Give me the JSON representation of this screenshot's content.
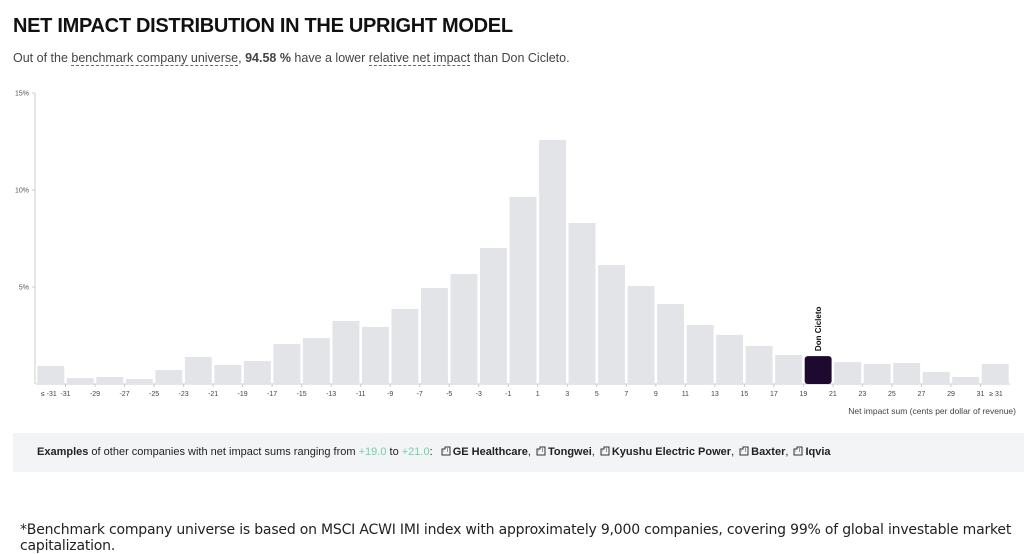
{
  "title": "NET IMPACT DISTRIBUTION IN THE UPRIGHT MODEL",
  "subtitle": [
    "Out of the ",
    "benchmark company universe",
    ", ",
    "94.58 %",
    " have a lower ",
    "relative net impact",
    " than Don Cicleto."
  ],
  "chart_data": {
    "type": "bar",
    "values": [
      0.93,
      0.3,
      0.36,
      0.26,
      0.72,
      1.39,
      0.98,
      1.19,
      2.06,
      2.37,
      3.25,
      2.94,
      3.87,
      4.95,
      5.67,
      7.01,
      9.64,
      12.58,
      8.3,
      6.13,
      5.05,
      4.12,
      3.04,
      2.53,
      1.96,
      1.49,
      1.44,
      1.13,
      1.03,
      1.08,
      0.62,
      0.36,
      1.03
    ],
    "color": "#e3e4e7",
    "highlight": {
      "name": "Don Cicleto",
      "bar": 26,
      "color": "#1e0a2e"
    },
    "xticks": [
      "≤ -31",
      -31,
      -29,
      -27,
      -25,
      -23,
      -21,
      -19,
      -17,
      -15,
      -13,
      -11,
      -9,
      -7,
      -5,
      -3,
      -1,
      1,
      3,
      5,
      7,
      9,
      11,
      13,
      15,
      17,
      19,
      21,
      23,
      25,
      27,
      29,
      31,
      "≥ 31"
    ],
    "xlabel": "Net impact sum (cents per dollar of revenue)",
    "ylim": [
      0,
      15
    ],
    "yticks": [
      {
        "value": 5,
        "label": "5%"
      },
      {
        "value": 10,
        "label": "10%"
      },
      {
        "value": 15,
        "label": "15%"
      }
    ]
  },
  "examples": {
    "parts": [
      "Examples",
      " of other companies with net impact sums ranging from ",
      "+19.0",
      " to ",
      "+21.0",
      ":"
    ],
    "companies": [
      "GE Healthcare",
      "Tongwei",
      "Kyushu Electric Power",
      "Baxter",
      "Iqvia"
    ]
  },
  "footnote": "*Benchmark company universe is based on MSCI ACWI IMI index with approximately 9,000 companies, covering 99% of global investable market capitalization."
}
